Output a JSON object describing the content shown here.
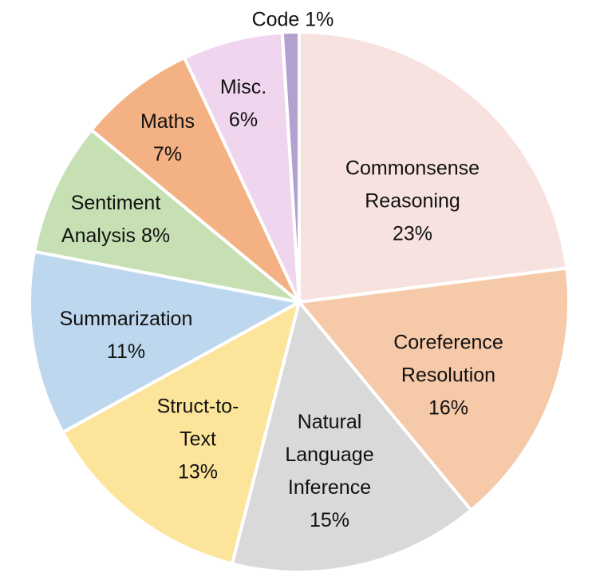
{
  "chart_data": {
    "type": "pie",
    "categories": [
      "Commonsense Reasoning",
      "Coreference Resolution",
      "Natural Language Inference",
      "Struct-to-Text",
      "Summarization",
      "Sentiment Analysis",
      "Maths",
      "Misc.",
      "Code"
    ],
    "values": [
      23,
      16,
      15,
      13,
      11,
      8,
      7,
      6,
      1
    ],
    "value_labels": [
      "23%",
      "16%",
      "15%",
      "13%",
      "11%",
      "8%",
      "7%",
      "6%",
      "1%"
    ],
    "colors": [
      "#f8e2e0",
      "#f6c9a9",
      "#d9d9d9",
      "#fde49b",
      "#bdd7ee",
      "#c6e0b4",
      "#f4b183",
      "#efd6ee",
      "#b3a0cf"
    ]
  }
}
